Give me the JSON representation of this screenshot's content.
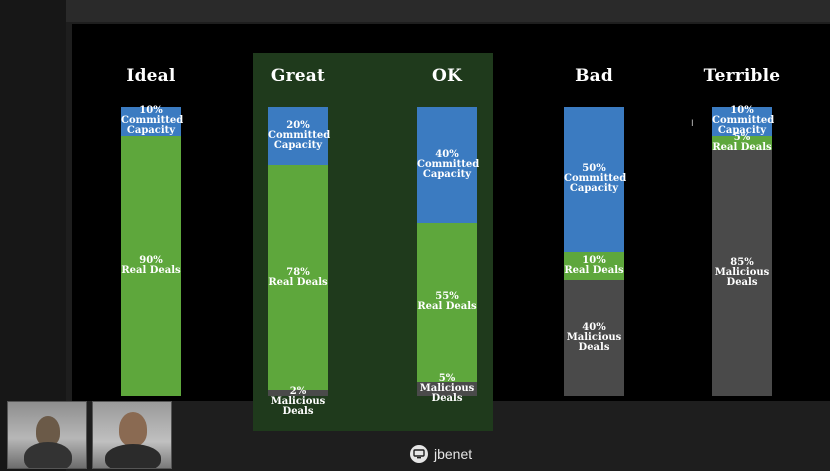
{
  "slide": {
    "columns": [
      {
        "title": "Ideal",
        "segments": [
          {
            "pct": 10,
            "color": "#3b7bc1",
            "label": [
              "10%",
              "Committed",
              "Capacity"
            ]
          },
          {
            "pct": 90,
            "color": "#5ea73c",
            "label": [
              "90%",
              "Real Deals"
            ]
          }
        ],
        "below": []
      },
      {
        "title": "Great",
        "segments": [
          {
            "pct": 20,
            "color": "#3b7bc1",
            "label": [
              "20%",
              "Committed",
              "Capacity"
            ]
          },
          {
            "pct": 78,
            "color": "#5ea73c",
            "label": [
              "78%",
              "Real Deals"
            ]
          },
          {
            "pct": 2,
            "color": "#4a4a4a",
            "label": []
          }
        ],
        "below": [
          "2%",
          "Malicious",
          "Deals"
        ]
      },
      {
        "title": "OK",
        "segments": [
          {
            "pct": 40,
            "color": "#3b7bc1",
            "label": [
              "40%",
              "Committed",
              "Capacity"
            ]
          },
          {
            "pct": 55,
            "color": "#5ea73c",
            "label": [
              "55%",
              "Real Deals"
            ]
          },
          {
            "pct": 5,
            "color": "#4a4a4a",
            "label": [
              "5%",
              "Malicious",
              "Deals"
            ]
          }
        ],
        "below": []
      },
      {
        "title": "Bad",
        "segments": [
          {
            "pct": 50,
            "color": "#3b7bc1",
            "label": [
              "50%",
              "Committed",
              "Capacity"
            ]
          },
          {
            "pct": 10,
            "color": "#5ea73c",
            "label": [
              "10%",
              "Real Deals"
            ]
          },
          {
            "pct": 40,
            "color": "#4a4a4a",
            "label": [
              "40%",
              "Malicious",
              "Deals"
            ]
          }
        ],
        "below": []
      },
      {
        "title": "Terrible",
        "segments": [
          {
            "pct": 10,
            "color": "#3b7bc1",
            "label": [
              "10%",
              "Committed",
              "Capacity"
            ]
          },
          {
            "pct": 5,
            "color": "#5ea73c",
            "label": [
              "5%",
              "Real Deals"
            ]
          },
          {
            "pct": 85,
            "color": "#4a4a4a",
            "label": [
              "85%",
              "Malicious",
              "Deals"
            ]
          }
        ],
        "below": []
      }
    ]
  },
  "presenter": {
    "name": "jbenet",
    "icon": "screen-share-icon"
  },
  "participants": [
    "video-thumbnail",
    "video-thumbnail"
  ],
  "colors": {
    "committed": "#3b7bc1",
    "real_deals": "#5ea73c",
    "malicious": "#4a4a4a",
    "highlight": "#1f3a1c"
  }
}
